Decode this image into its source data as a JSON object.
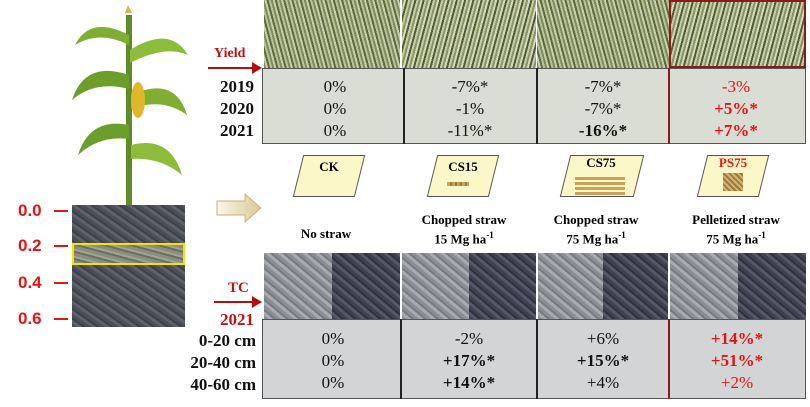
{
  "yield_section": {
    "label": "Yield",
    "years": [
      "2019",
      "2020",
      "2021"
    ],
    "columns": [
      {
        "key": "ck",
        "values": [
          "0%",
          "0%",
          "0%"
        ]
      },
      {
        "key": "cs15",
        "values": [
          "-7%*",
          "-1%",
          "-11%*"
        ]
      },
      {
        "key": "cs75",
        "values": [
          "-7%*",
          "-7%*",
          "-16%*"
        ]
      },
      {
        "key": "ps75",
        "values": [
          "-3%",
          "+5%*",
          "+7%*"
        ]
      }
    ]
  },
  "depth_scale": [
    "0.0",
    "0.2",
    "0.4",
    "0.6"
  ],
  "treatments": [
    {
      "code": "CK",
      "line1": "No straw",
      "line2": ""
    },
    {
      "code": "CS15",
      "line1": "Chopped straw",
      "line2": "15 Mg ha",
      "sup": "-1"
    },
    {
      "code": "CS75",
      "line1": "Chopped straw",
      "line2": "75 Mg ha",
      "sup": "-1"
    },
    {
      "code": "PS75",
      "line1": "Pelletized straw",
      "line2": "75 Mg ha",
      "sup": "-1"
    }
  ],
  "tc_section": {
    "label": "TC",
    "year": "2021",
    "depths": [
      "0-20 cm",
      "20-40 cm",
      "40-60 cm"
    ],
    "columns": [
      {
        "key": "ck",
        "values": [
          "0%",
          "0%",
          "0%"
        ]
      },
      {
        "key": "cs15",
        "values": [
          "-2%",
          "+17%*",
          "+14%*"
        ]
      },
      {
        "key": "cs75",
        "values": [
          "+6%",
          "+15%*",
          "+4%"
        ]
      },
      {
        "key": "ps75",
        "values": [
          "+14%*",
          "+51%*",
          "+2%"
        ]
      }
    ]
  },
  "colors": {
    "highlight": "#e31414",
    "marker": "#f2e600"
  }
}
